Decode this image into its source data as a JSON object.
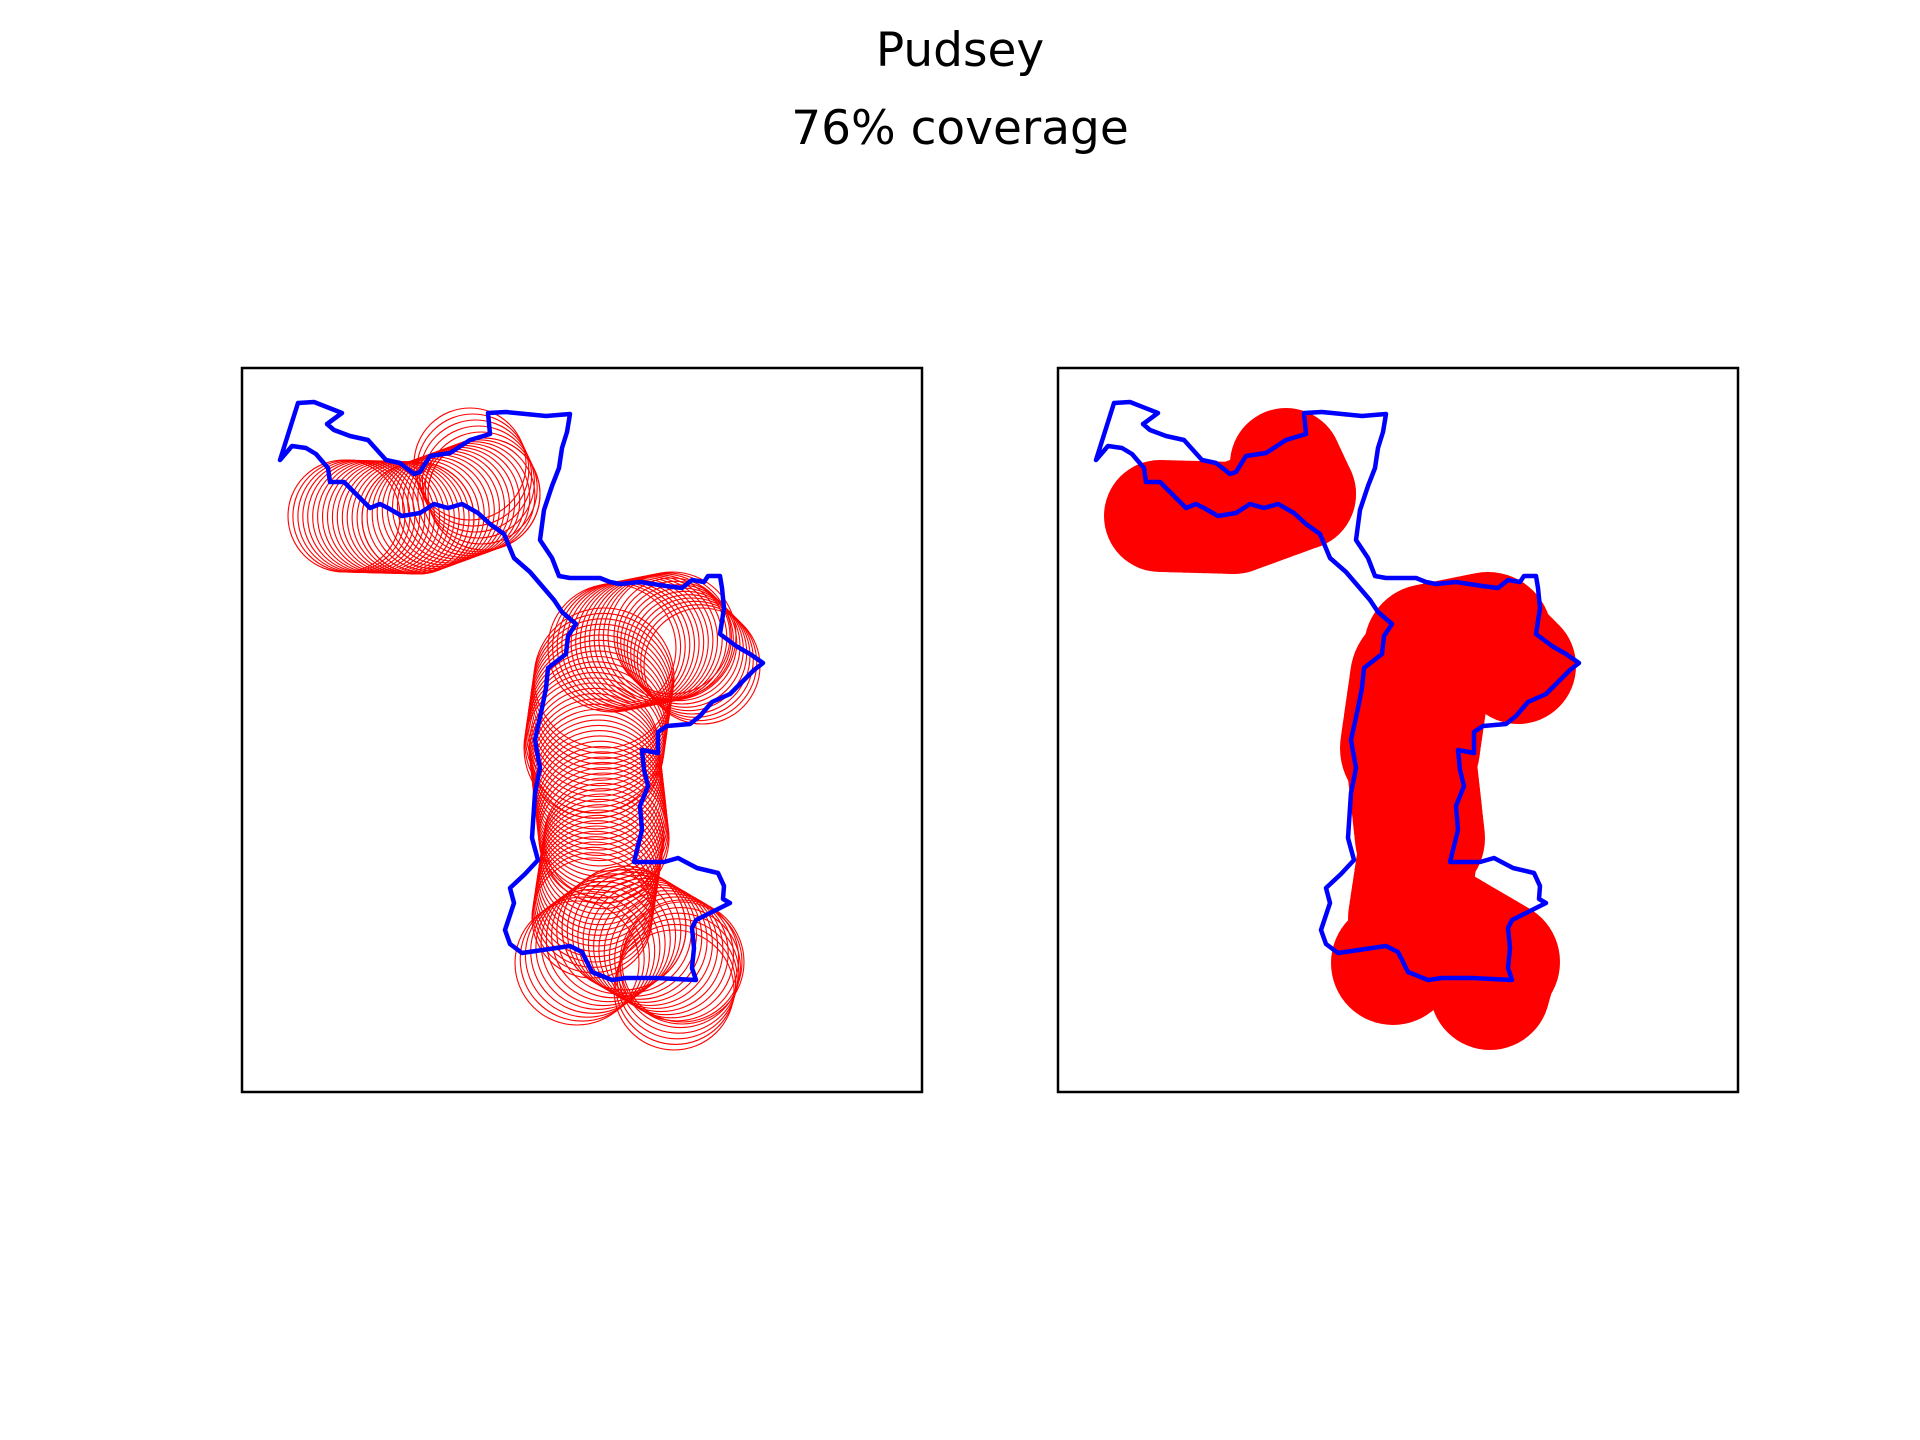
{
  "figure": {
    "title": "Pudsey",
    "subtitle": "76% coverage"
  },
  "colors": {
    "boundary": "#0000ff",
    "coverage": "#ff0000",
    "frame": "#000000",
    "background": "#ffffff"
  },
  "panels": [
    {
      "id": "left",
      "style": "outlined-circles"
    },
    {
      "id": "right",
      "style": "filled-circles"
    }
  ],
  "map_data": {
    "region_name": "Pudsey",
    "coverage_percent": 76
  }
}
